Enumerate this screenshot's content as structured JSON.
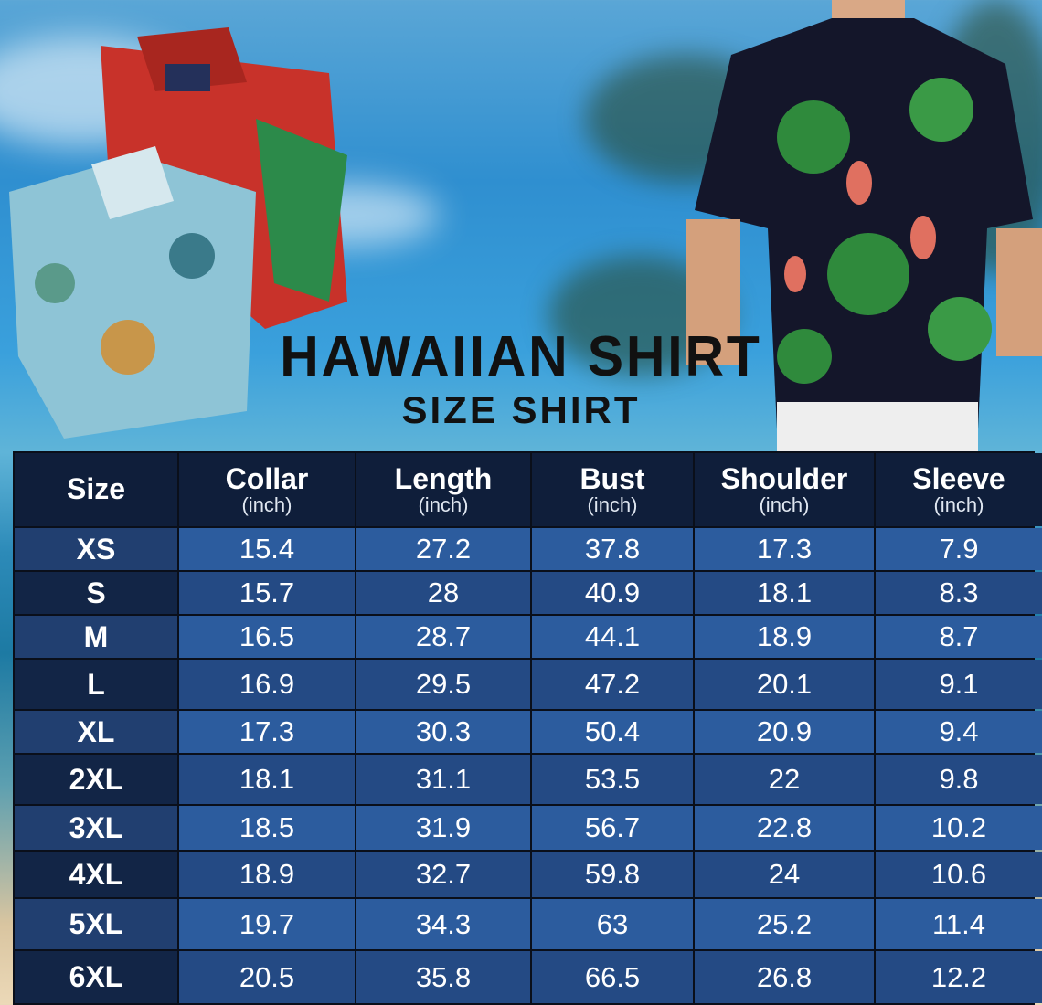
{
  "title": "HAWAIIAN SHIRT",
  "subtitle": "SIZE SHIRT",
  "table": {
    "headers": [
      {
        "label": "Size",
        "unit": ""
      },
      {
        "label": "Collar",
        "unit": "(inch)"
      },
      {
        "label": "Length",
        "unit": "(inch)"
      },
      {
        "label": "Bust",
        "unit": "(inch)"
      },
      {
        "label": "Shoulder",
        "unit": "(inch)"
      },
      {
        "label": "Sleeve",
        "unit": "(inch)"
      }
    ],
    "rows": [
      [
        "XS",
        "15.4",
        "27.2",
        "37.8",
        "17.3",
        "7.9"
      ],
      [
        "S",
        "15.7",
        "28",
        "40.9",
        "18.1",
        "8.3"
      ],
      [
        "M",
        "16.5",
        "28.7",
        "44.1",
        "18.9",
        "8.7"
      ],
      [
        "L",
        "16.9",
        "29.5",
        "47.2",
        "20.1",
        "9.1"
      ],
      [
        "XL",
        "17.3",
        "30.3",
        "50.4",
        "20.9",
        "9.4"
      ],
      [
        "2XL",
        "18.1",
        "31.1",
        "53.5",
        "22",
        "9.8"
      ],
      [
        "3XL",
        "18.5",
        "31.9",
        "56.7",
        "22.8",
        "10.2"
      ],
      [
        "4XL",
        "18.9",
        "32.7",
        "59.8",
        "24",
        "10.6"
      ],
      [
        "5XL",
        "19.7",
        "34.3",
        "63",
        "25.2",
        "11.4"
      ],
      [
        "6XL",
        "20.5",
        "35.8",
        "66.5",
        "26.8",
        "12.2"
      ]
    ]
  },
  "colors": {
    "header": "#0f1e3a",
    "row_light": "#2c5c9e",
    "row_dark": "#244a84",
    "size_light": "#213f70",
    "size_dark": "#122546"
  }
}
